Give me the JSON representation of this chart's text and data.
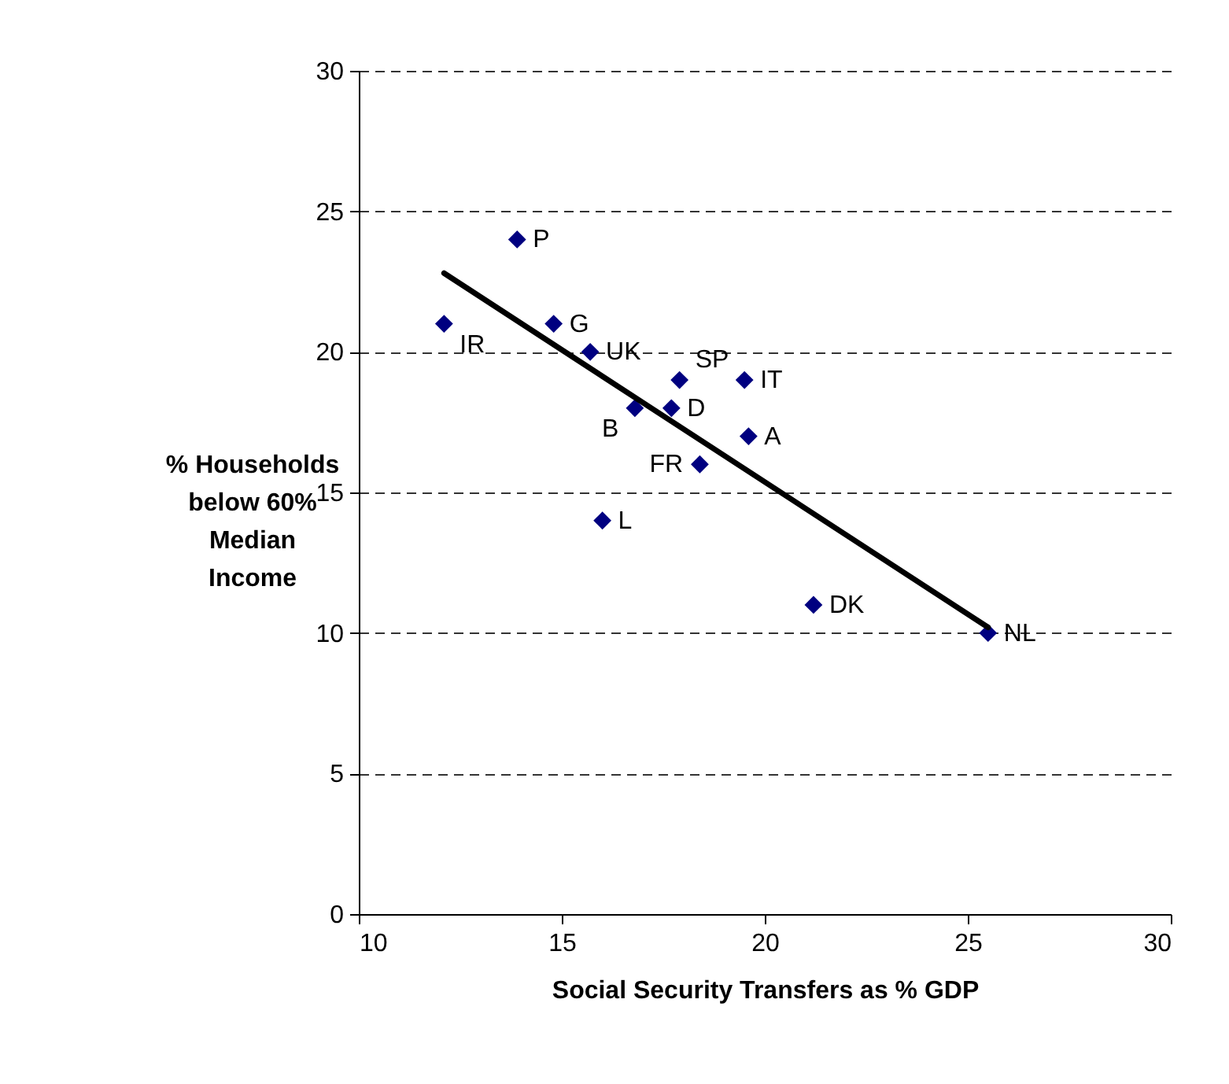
{
  "chart_data": {
    "type": "scatter",
    "xlabel": "Social Security Transfers as % GDP",
    "ylabel": "% Households below 60% Median Income",
    "xlim": [
      10,
      30
    ],
    "xticks": [
      10,
      15,
      20,
      25,
      30
    ],
    "ylim": [
      0,
      30
    ],
    "yticks": [
      0,
      5,
      10,
      15,
      20,
      25,
      30
    ],
    "grid": "y",
    "series": [
      {
        "color": "#000080",
        "marker": "diamond",
        "x": [
          12.1,
          13.9,
          14.8,
          15.7,
          16.8,
          16.0,
          17.7,
          17.9,
          18.4,
          19.5,
          19.6,
          21.2,
          25.5
        ],
        "values": [
          21,
          24,
          21,
          20,
          18,
          14,
          18,
          19,
          16,
          19,
          17,
          11,
          10
        ]
      },
      {
        "type": "line",
        "color": "#000000",
        "x": [
          12.1,
          25.5
        ],
        "values": [
          22.8,
          10.2
        ]
      }
    ],
    "annotations": [
      {
        "text": "IR",
        "x": 12.1,
        "y": 21
      },
      {
        "text": "P",
        "x": 13.9,
        "y": 24
      },
      {
        "text": "G",
        "x": 14.8,
        "y": 21
      },
      {
        "text": "UK",
        "x": 15.7,
        "y": 20
      },
      {
        "text": "B",
        "x": 16.8,
        "y": 18
      },
      {
        "text": "L",
        "x": 16.0,
        "y": 14
      },
      {
        "text": "D",
        "x": 17.7,
        "y": 18
      },
      {
        "text": "SP",
        "x": 17.9,
        "y": 19
      },
      {
        "text": "FR",
        "x": 18.4,
        "y": 16
      },
      {
        "text": "IT",
        "x": 19.5,
        "y": 19
      },
      {
        "text": "A",
        "x": 19.6,
        "y": 17
      },
      {
        "text": "DK",
        "x": 21.2,
        "y": 11
      },
      {
        "text": "NL",
        "x": 25.5,
        "y": 10
      }
    ]
  }
}
